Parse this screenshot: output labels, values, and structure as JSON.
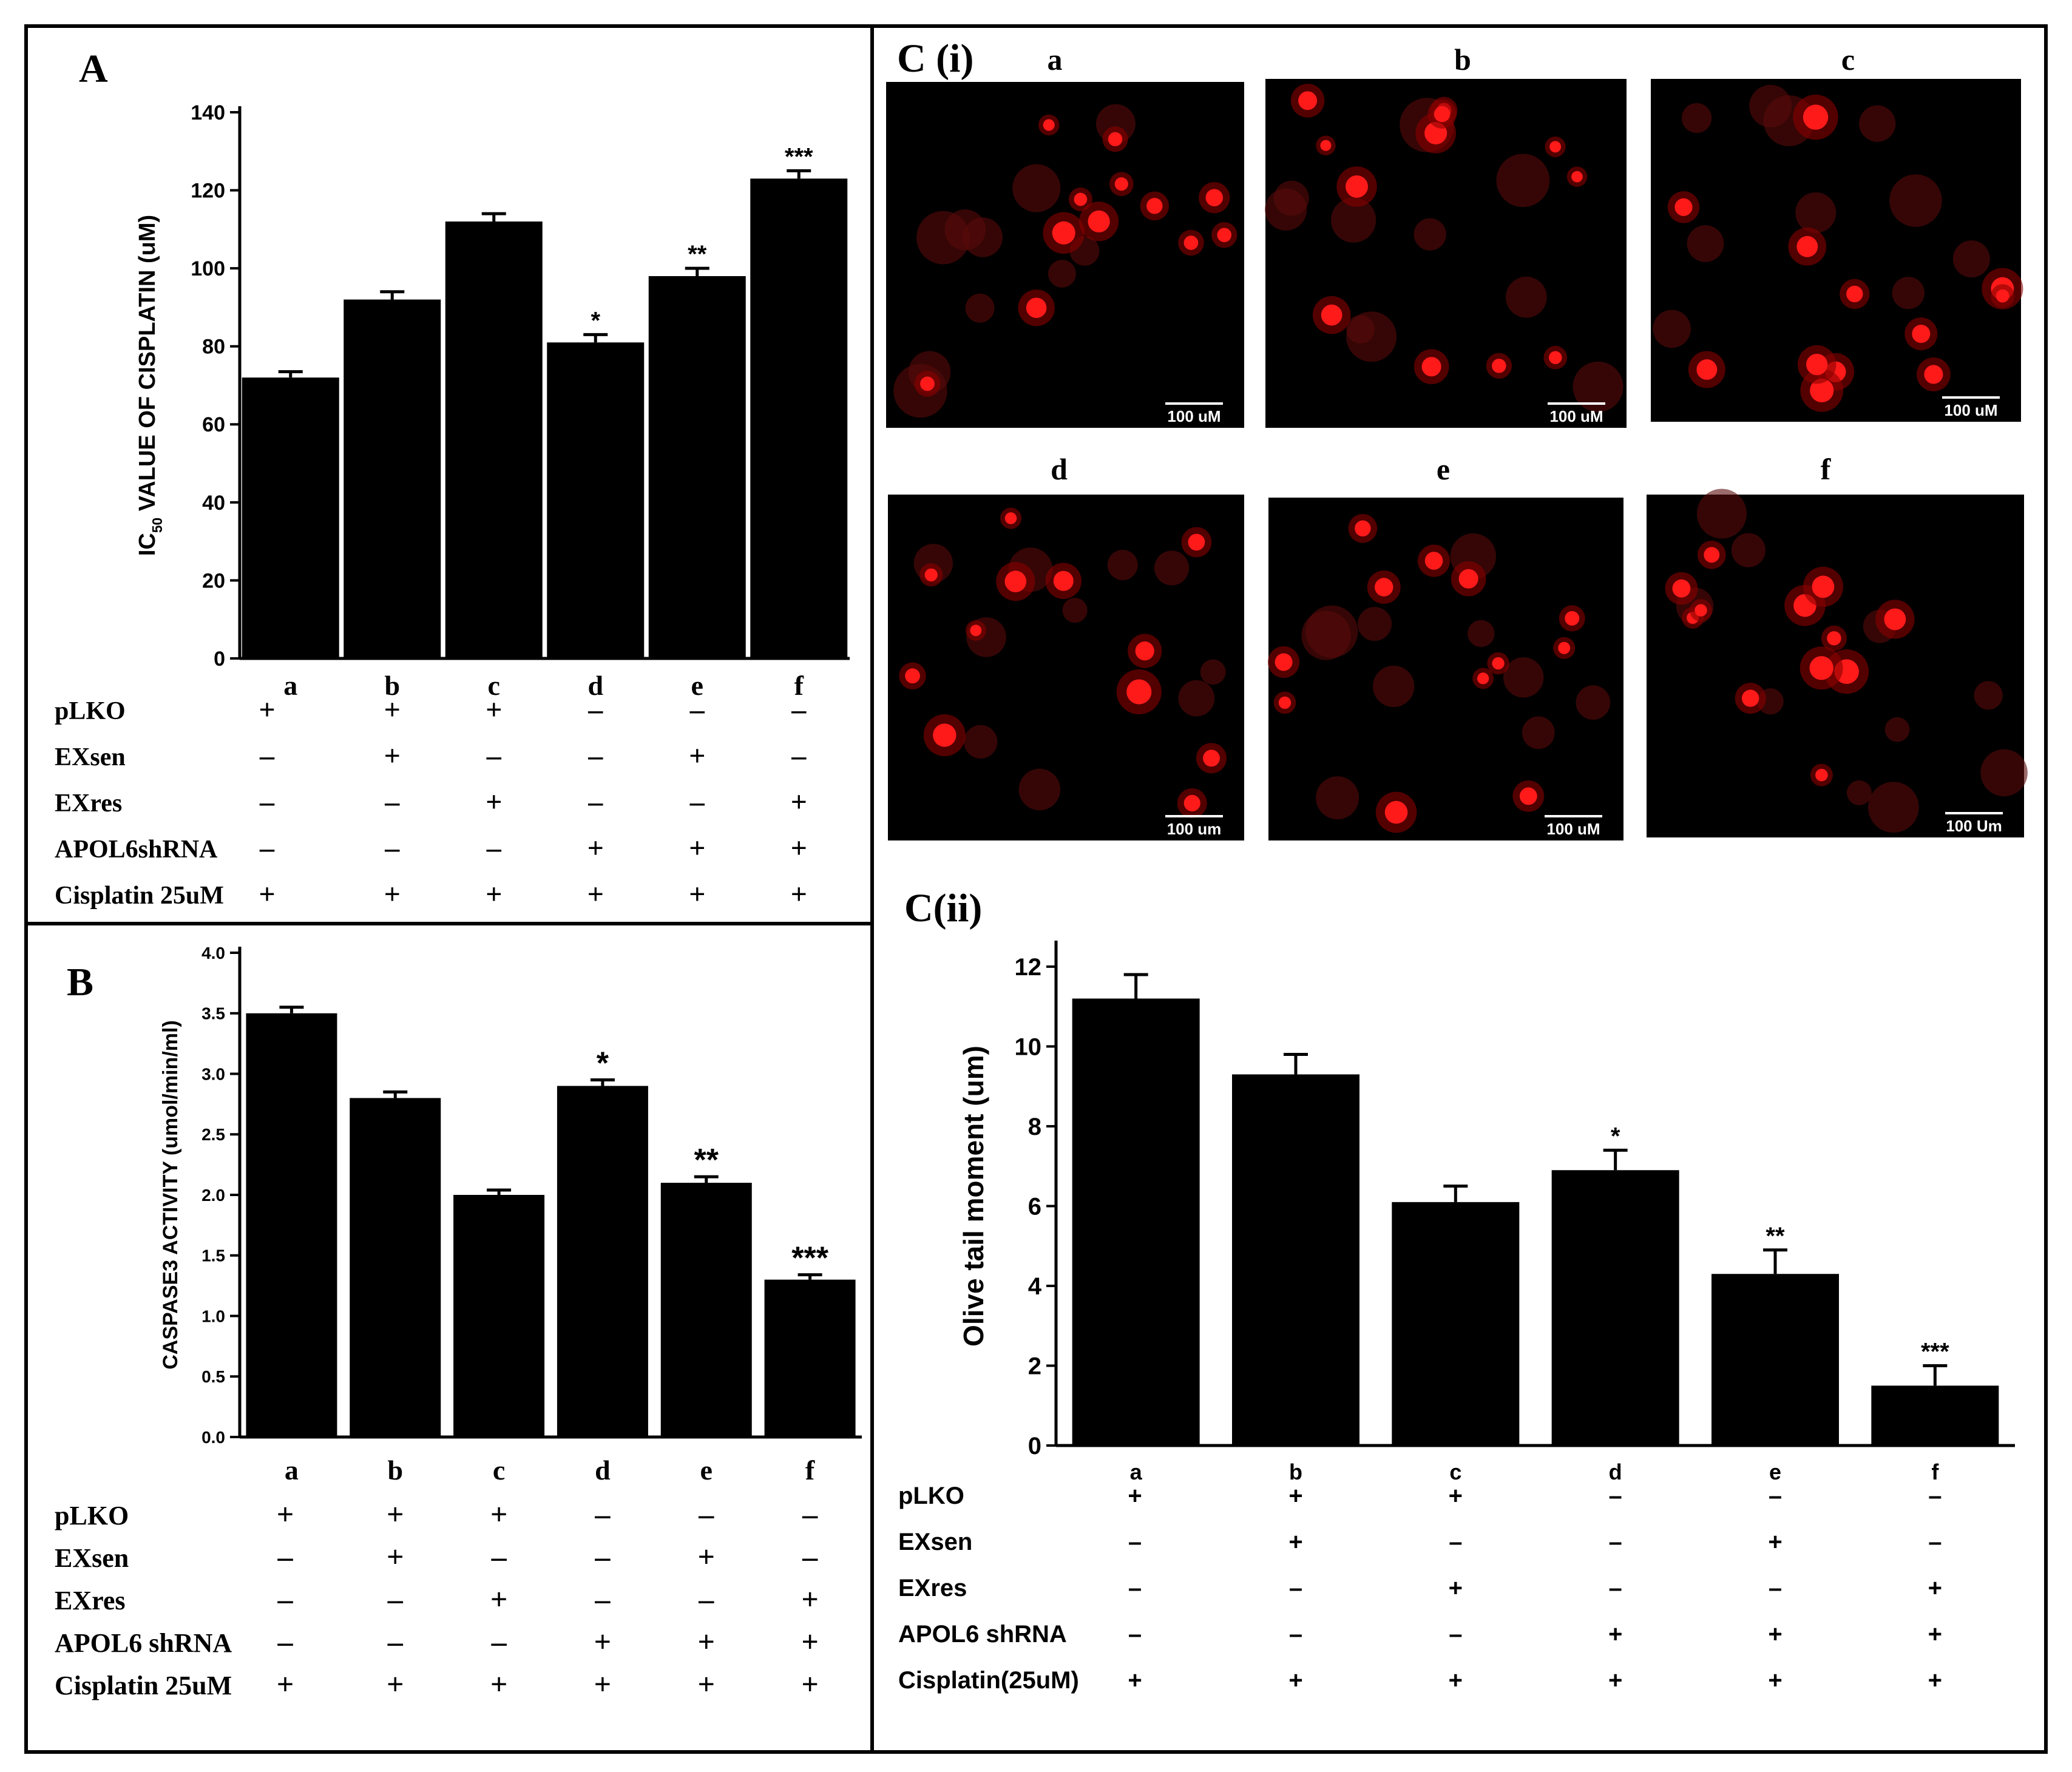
{
  "panels": {
    "A": {
      "label": "A"
    },
    "B": {
      "label": "B"
    },
    "Ci": {
      "label": "C (i)"
    },
    "Cii": {
      "label": "C(ii)"
    }
  },
  "micrographs": {
    "images": [
      {
        "letter": "a",
        "scale_text": "100 uM"
      },
      {
        "letter": "b",
        "scale_text": "100 uM"
      },
      {
        "letter": "c",
        "scale_text": "100 uM"
      },
      {
        "letter": "d",
        "scale_text": "100 um"
      },
      {
        "letter": "e",
        "scale_text": "100 uM"
      },
      {
        "letter": "f",
        "scale_text": "100 Um"
      }
    ],
    "colors": {
      "background": "#000000",
      "cell": "#ff1a1a"
    }
  },
  "chart_data": [
    {
      "id": "A",
      "type": "bar",
      "ylabel_main": "IC",
      "ylabel_sub": "50",
      "ylabel_rest": " VALUE OF CISPLATIN (uM)",
      "categories": [
        "a",
        "b",
        "c",
        "d",
        "e",
        "f"
      ],
      "values": [
        72,
        92,
        112,
        81,
        98,
        123
      ],
      "errors": [
        1.5,
        2,
        2,
        2,
        2,
        2
      ],
      "significance": [
        "",
        "",
        "",
        "*",
        "**",
        "***"
      ],
      "ylim": [
        0,
        140
      ],
      "yticks": [
        "0",
        "20",
        "40",
        "60",
        "80",
        "100",
        "120",
        "140"
      ],
      "conditions": [
        {
          "name": "pLKO",
          "signs": [
            "+",
            "+",
            "+",
            "–",
            "–",
            "–"
          ]
        },
        {
          "name": "EXsen",
          "signs": [
            "–",
            "+",
            "–",
            "–",
            "+",
            "–"
          ]
        },
        {
          "name": "EXres",
          "signs": [
            "–",
            "–",
            "+",
            "–",
            "–",
            "+"
          ]
        },
        {
          "name": "APOL6shRNA",
          "signs": [
            "–",
            "–",
            "–",
            "+",
            "+",
            "+"
          ]
        },
        {
          "name": "Cisplatin 25uM",
          "signs": [
            "+",
            "+",
            "+",
            "+",
            "+",
            "+"
          ]
        }
      ]
    },
    {
      "id": "B",
      "type": "bar",
      "ylabel": "CASPASE3 ACTIVITY (umol/min/ml)",
      "categories": [
        "a",
        "b",
        "c",
        "d",
        "e",
        "f"
      ],
      "values": [
        3.5,
        2.8,
        2.0,
        2.9,
        2.1,
        1.3
      ],
      "errors": [
        0.05,
        0.05,
        0.04,
        0.05,
        0.05,
        0.04
      ],
      "significance": [
        "",
        "",
        "",
        "*",
        "**",
        "***"
      ],
      "ylim": [
        0,
        4.0
      ],
      "yticks": [
        "0.0",
        "0.5",
        "1.0",
        "1.5",
        "2.0",
        "2.5",
        "3.0",
        "3.5",
        "4.0"
      ],
      "conditions": [
        {
          "name": "pLKO",
          "signs": [
            "+",
            "+",
            "+",
            "–",
            "–",
            "–"
          ]
        },
        {
          "name": "EXsen",
          "signs": [
            "–",
            "+",
            "–",
            "–",
            "+",
            "–"
          ]
        },
        {
          "name": "EXres",
          "signs": [
            "–",
            "–",
            "+",
            "–",
            "–",
            "+"
          ]
        },
        {
          "name": "APOL6 shRNA",
          "signs": [
            "–",
            "–",
            "–",
            "+",
            "+",
            "+"
          ]
        },
        {
          "name": "Cisplatin 25uM",
          "signs": [
            "+",
            "+",
            "+",
            "+",
            "+",
            "+"
          ]
        }
      ]
    },
    {
      "id": "Cii",
      "type": "bar",
      "ylabel": "Olive tail moment (um)",
      "categories": [
        "a",
        "b",
        "c",
        "d",
        "e",
        "f"
      ],
      "values": [
        11.2,
        9.3,
        6.1,
        6.9,
        4.3,
        1.5
      ],
      "errors": [
        0.6,
        0.5,
        0.4,
        0.5,
        0.6,
        0.5
      ],
      "significance": [
        "",
        "",
        "",
        "*",
        "**",
        "***"
      ],
      "ylim": [
        0,
        12.5
      ],
      "yticks": [
        "0",
        "2",
        "4",
        "6",
        "8",
        "10",
        "12"
      ],
      "conditions": [
        {
          "name": "pLKO",
          "signs": [
            "+",
            "+",
            "+",
            "–",
            "–",
            "–"
          ]
        },
        {
          "name": "EXsen",
          "signs": [
            "–",
            "+",
            "–",
            "–",
            "+",
            "–"
          ]
        },
        {
          "name": "EXres",
          "signs": [
            "–",
            "–",
            "+",
            "–",
            "–",
            "+"
          ]
        },
        {
          "name": "APOL6 shRNA",
          "signs": [
            "–",
            "–",
            "–",
            "+",
            "+",
            "+"
          ]
        },
        {
          "name": "Cisplatin(25uM)",
          "signs": [
            "+",
            "+",
            "+",
            "+",
            "+",
            "+"
          ]
        }
      ]
    }
  ]
}
